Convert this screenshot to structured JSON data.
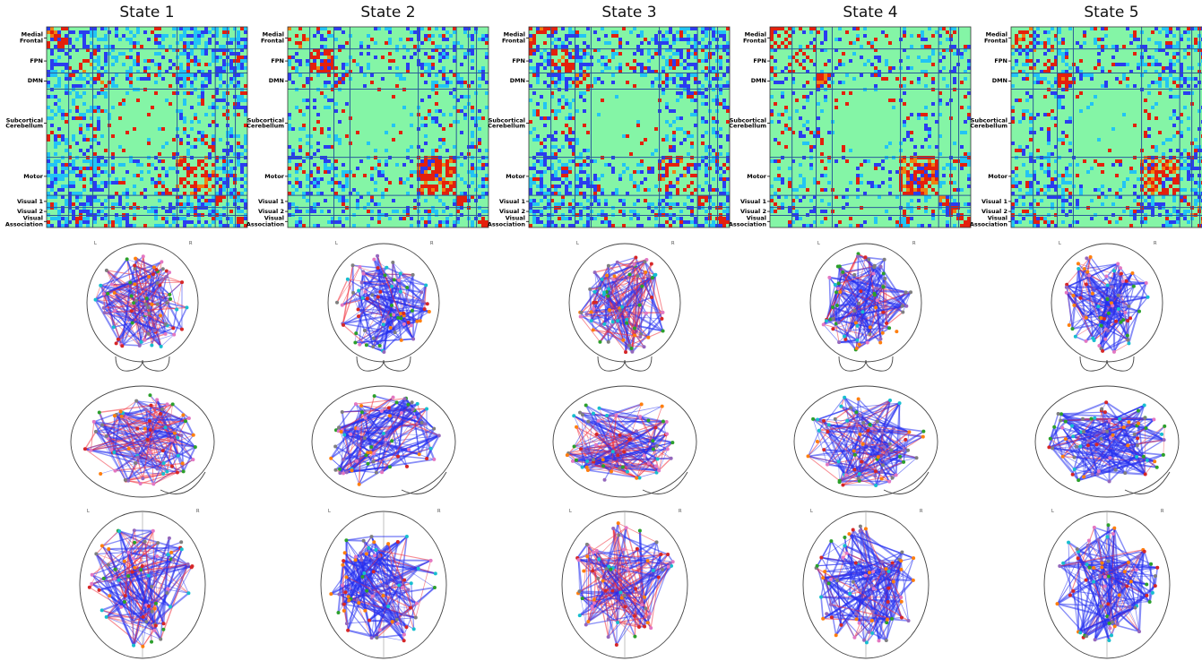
{
  "panels": [
    {
      "title": "State 1"
    },
    {
      "title": "State 2"
    },
    {
      "title": "State 3"
    },
    {
      "title": "State 4"
    },
    {
      "title": "State 5"
    }
  ],
  "network_labels": [
    "Medial\nFrontal",
    "FPN",
    "DMN",
    "Subcortical\nCerebellum",
    "Motor",
    "Visual 1",
    "Visual 2",
    "Visual\nAssociation"
  ],
  "orientation_labels": [
    "L",
    "R"
  ]
}
